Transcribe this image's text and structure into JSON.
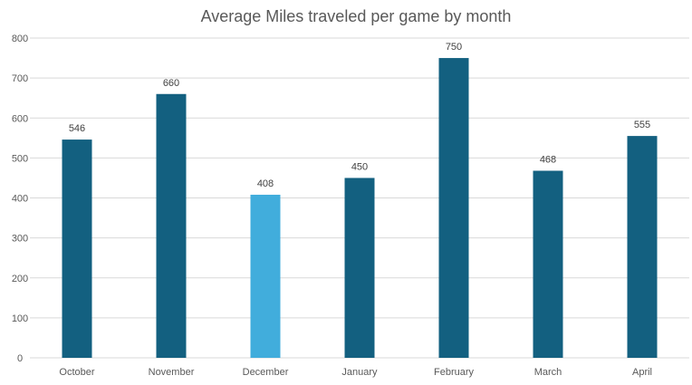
{
  "chart_data": {
    "type": "bar",
    "title": "Average Miles traveled per game by month",
    "xlabel": "",
    "ylabel": "",
    "categories": [
      "October",
      "November",
      "December",
      "January",
      "February",
      "March",
      "April"
    ],
    "values": [
      546,
      660,
      408,
      450,
      750,
      468,
      555
    ],
    "data_labels": [
      "546",
      "660",
      "408",
      "450",
      "750",
      "468",
      "555"
    ],
    "highlight_index": 2,
    "ylim": [
      0,
      800
    ],
    "yticks": [
      0,
      100,
      200,
      300,
      400,
      500,
      600,
      700,
      800
    ],
    "ytick_labels": [
      "0",
      "100",
      "200",
      "300",
      "400",
      "500",
      "600",
      "700",
      "800"
    ],
    "grid": true,
    "legend": "none",
    "colors": {
      "bar": "#136080",
      "highlight": "#41addc",
      "grid": "#d9d9d9",
      "text": "#595959",
      "title": "#595959"
    }
  }
}
